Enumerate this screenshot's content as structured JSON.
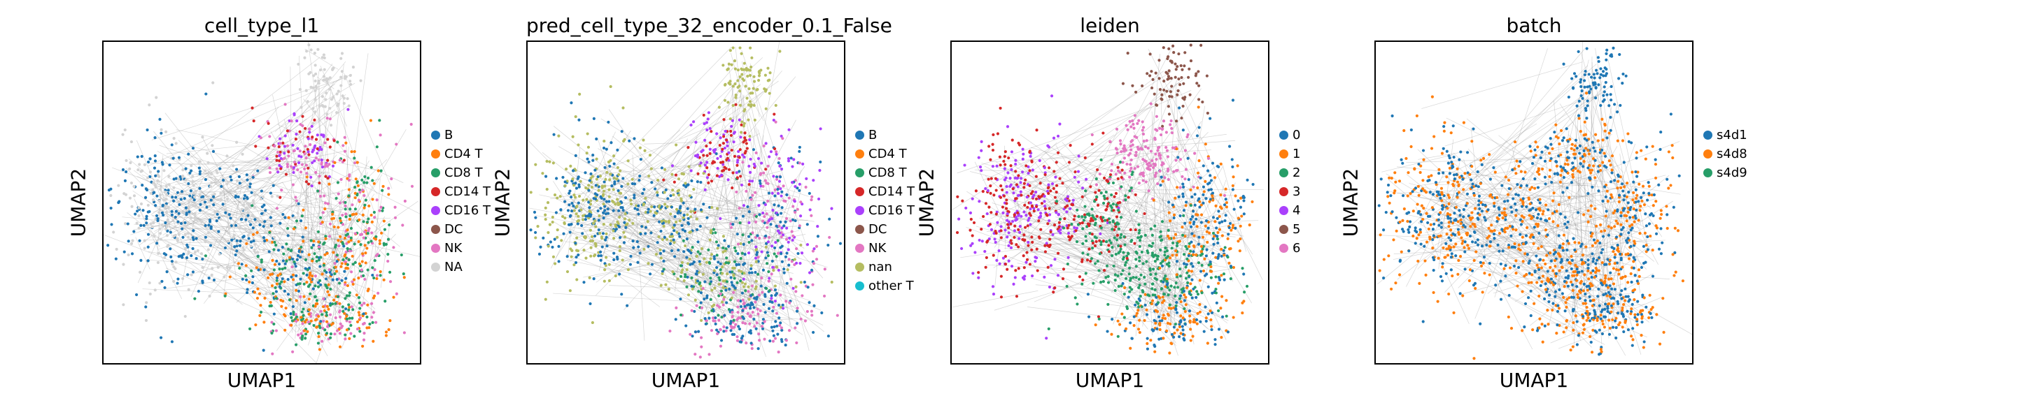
{
  "chart_data": [
    {
      "type": "scatter",
      "title": "cell_type_l1",
      "xlabel": "UMAP1",
      "ylabel": "UMAP2",
      "legend_position": "right",
      "categories": [
        {
          "name": "B",
          "color": "#1f77b4"
        },
        {
          "name": "CD4 T",
          "color": "#ff7f0e"
        },
        {
          "name": "CD8 T",
          "color": "#279e68"
        },
        {
          "name": "CD14 T",
          "color": "#d62728"
        },
        {
          "name": "CD16 T",
          "color": "#aa40fc"
        },
        {
          "name": "DC",
          "color": "#8c564b"
        },
        {
          "name": "NK",
          "color": "#e377c2"
        },
        {
          "name": "NA",
          "color": "#d3d3d3"
        }
      ]
    },
    {
      "type": "scatter",
      "title": "pred_cell_type_32_encoder_0.1_False",
      "xlabel": "UMAP1",
      "ylabel": "UMAP2",
      "legend_position": "right",
      "categories": [
        {
          "name": "B",
          "color": "#1f77b4"
        },
        {
          "name": "CD4 T",
          "color": "#ff7f0e"
        },
        {
          "name": "CD8 T",
          "color": "#279e68"
        },
        {
          "name": "CD14 T",
          "color": "#d62728"
        },
        {
          "name": "CD16 T",
          "color": "#aa40fc"
        },
        {
          "name": "DC",
          "color": "#8c564b"
        },
        {
          "name": "NK",
          "color": "#e377c2"
        },
        {
          "name": "nan",
          "color": "#b5bd61"
        },
        {
          "name": "other T",
          "color": "#17becf"
        }
      ]
    },
    {
      "type": "scatter",
      "title": "leiden",
      "xlabel": "UMAP1",
      "ylabel": "UMAP2",
      "legend_position": "right",
      "categories": [
        {
          "name": "0",
          "color": "#1f77b4"
        },
        {
          "name": "1",
          "color": "#ff7f0e"
        },
        {
          "name": "2",
          "color": "#279e68"
        },
        {
          "name": "3",
          "color": "#d62728"
        },
        {
          "name": "4",
          "color": "#aa40fc"
        },
        {
          "name": "5",
          "color": "#8c564b"
        },
        {
          "name": "6",
          "color": "#e377c2"
        }
      ]
    },
    {
      "type": "scatter",
      "title": "batch",
      "xlabel": "UMAP1",
      "ylabel": "UMAP2",
      "legend_position": "right",
      "categories": [
        {
          "name": "s4d1",
          "color": "#1f77b4"
        },
        {
          "name": "s4d8",
          "color": "#ff7f0e"
        },
        {
          "name": "s4d9",
          "color": "#279e68"
        }
      ]
    }
  ]
}
